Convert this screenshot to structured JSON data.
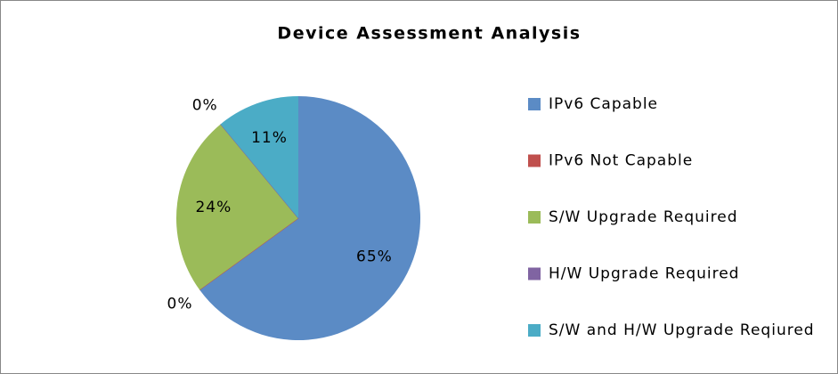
{
  "chart_data": {
    "type": "pie",
    "title": "Device Assessment Analysis",
    "categories": [
      "IPv6 Capable",
      "IPv6 Not Capable",
      "S/W Upgrade Required",
      "H/W Upgrade Required",
      "S/W and H/W Upgrade Reqiured"
    ],
    "values": [
      65,
      0,
      24,
      0,
      11
    ],
    "value_labels": [
      "65%",
      "0%",
      "24%",
      "0%",
      "11%"
    ],
    "colors": [
      "#5b8bc5",
      "#c0504d",
      "#9bbb59",
      "#8064a2",
      "#4bacc6"
    ],
    "legend": "right"
  }
}
